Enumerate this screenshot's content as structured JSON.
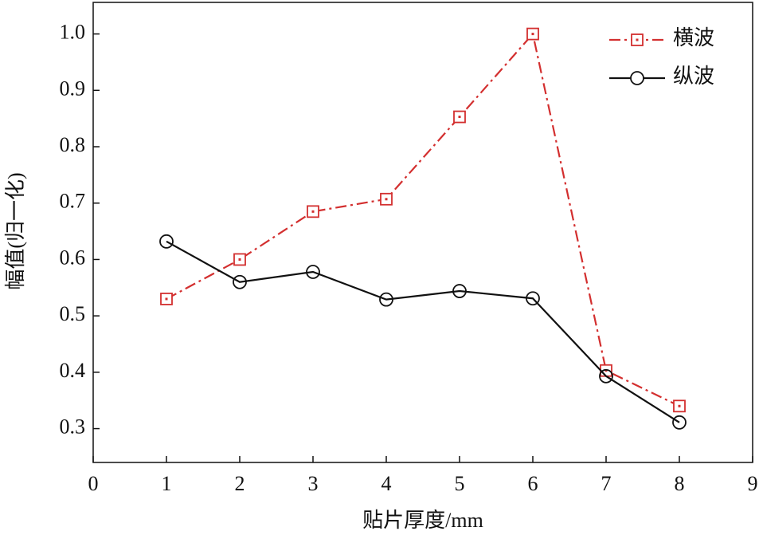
{
  "chart_data": {
    "type": "line",
    "x_label": "贴片厚度/mm",
    "y_label": "幅值(归一化)",
    "x": [
      1,
      2,
      3,
      4,
      5,
      6,
      7,
      8
    ],
    "series": [
      {
        "name": "横波",
        "color": "#d32f2f",
        "dash": "dashdot",
        "marker": "square",
        "values": [
          0.53,
          0.6,
          0.685,
          0.707,
          0.853,
          1.0,
          0.403,
          0.34
        ]
      },
      {
        "name": "纵波",
        "color": "#111111",
        "dash": "solid",
        "marker": "circle",
        "values": [
          0.632,
          0.56,
          0.578,
          0.529,
          0.544,
          0.531,
          0.393,
          0.311
        ]
      }
    ],
    "xlim": [
      0,
      9
    ],
    "ylim": [
      0.24,
      1.056
    ],
    "xticks": [
      0,
      1,
      2,
      3,
      4,
      5,
      6,
      7,
      8,
      9
    ],
    "yticks": [
      0.3,
      0.4,
      0.5,
      0.6,
      0.7,
      0.8,
      0.9,
      {
        "value": 1,
        "label": "1.0"
      }
    ],
    "legend": "upper right"
  }
}
